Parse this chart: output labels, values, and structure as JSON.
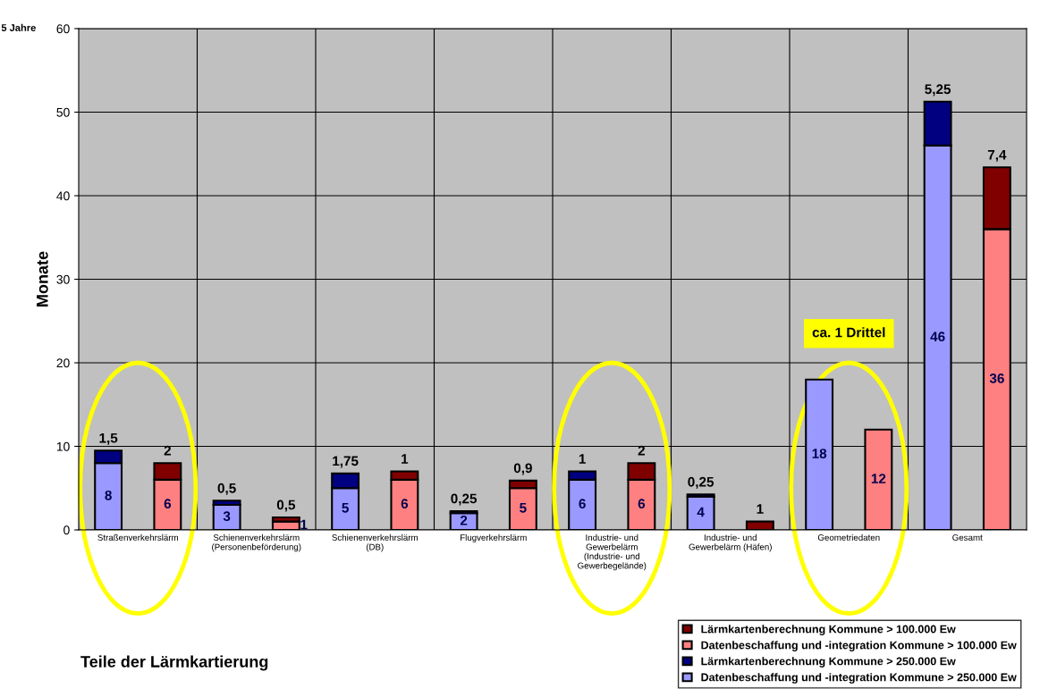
{
  "chart_data": {
    "type": "bar",
    "stacked": true,
    "categories": [
      "Straßenverkehrslärm",
      null,
      "Schienenverkehrslärm\n(Personenbeförderung)",
      null,
      "Schienenverkehrslärm\n(DB)",
      null,
      "Flugverkehrslärm",
      null,
      "Industrie- und\nGewerbelärm\n(Industrie- und\nGewerbegelände)",
      null,
      "Industrie- und\nGewerbelärm (Häfen)",
      null,
      "Geometriedaten",
      null,
      "Gesamt",
      null
    ],
    "series": [
      {
        "name": "Datenbeschaffung und -integration Kommune > 250.000 Ew",
        "color": "#9999ff",
        "values": [
          8,
          null,
          3,
          null,
          5,
          null,
          2,
          null,
          6,
          null,
          4,
          null,
          18,
          null,
          46,
          null
        ],
        "value_labels": [
          "8",
          null,
          "3",
          null,
          "5",
          null,
          "2",
          null,
          "6",
          null,
          "4",
          null,
          "18",
          null,
          "46",
          null
        ]
      },
      {
        "name": "Lärmkartenberechnung Kommune > 250.000 Ew",
        "color": "#000080",
        "values": [
          1.5,
          null,
          0.5,
          null,
          1.75,
          null,
          0.25,
          null,
          1,
          null,
          0.25,
          null,
          null,
          null,
          5.25,
          null
        ],
        "value_labels": [
          "1,5",
          null,
          "0,5",
          null,
          "1,75",
          null,
          "0,25",
          null,
          "1",
          null,
          "0,25",
          null,
          null,
          null,
          "5,25",
          null
        ]
      },
      {
        "name": "Datenbeschaffung und -integration Kommune > 100.000 Ew",
        "color": "#ff8080",
        "values": [
          null,
          6,
          null,
          1,
          null,
          6,
          null,
          5,
          null,
          6,
          null,
          null,
          null,
          12,
          null,
          36
        ],
        "value_labels": [
          null,
          "6",
          null,
          "1",
          null,
          "6",
          null,
          "5",
          null,
          "6",
          null,
          null,
          null,
          "12",
          null,
          "36"
        ]
      },
      {
        "name": "Lärmkartenberechnung Kommune > 100.000 Ew",
        "color": "#800000",
        "values": [
          null,
          2,
          null,
          0.5,
          null,
          1,
          null,
          0.9,
          null,
          2,
          null,
          1,
          null,
          null,
          null,
          7.4
        ],
        "value_labels": [
          null,
          "2",
          null,
          "0,5",
          null,
          "1",
          null,
          "0,9",
          null,
          "2",
          null,
          "1",
          null,
          null,
          null,
          "7,4"
        ]
      }
    ],
    "ylabel": "Monate",
    "ylim": [
      0,
      60
    ],
    "yticks": [
      0,
      10,
      20,
      30,
      40,
      50,
      60
    ],
    "grid": true,
    "legend": "bottom right",
    "annotations": [
      "5 Jahre",
      "ca. 1 Drittel",
      "Teile der Lärmkartierung"
    ]
  }
}
